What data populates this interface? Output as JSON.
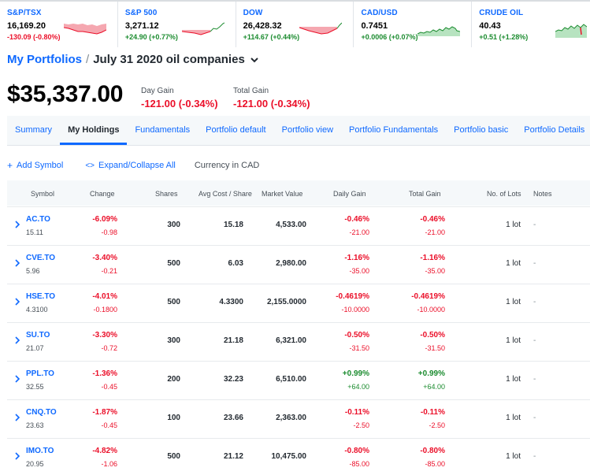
{
  "tickers": [
    {
      "name": "S&P/TSX",
      "price": "16,169.20",
      "change": "-130.09 (-0.80%)",
      "dir": "neg",
      "spark": "neg"
    },
    {
      "name": "S&P 500",
      "price": "3,271.12",
      "change": "+24.90 (+0.77%)",
      "dir": "pos",
      "spark": "mix"
    },
    {
      "name": "DOW",
      "price": "26,428.32",
      "change": "+114.67 (+0.44%)",
      "dir": "pos",
      "spark": "mix2"
    },
    {
      "name": "CAD/USD",
      "price": "0.7451",
      "change": "+0.0006 (+0.07%)",
      "dir": "pos",
      "spark": "pos"
    },
    {
      "name": "CRUDE OIL",
      "price": "40.43",
      "change": "+0.51 (+1.28%)",
      "dir": "pos",
      "spark": "pos2"
    }
  ],
  "breadcrumb": {
    "root": "My Portfolios",
    "separator": "/",
    "current": "July 31 2020 oil companies"
  },
  "summary": {
    "value": "$35,337.00",
    "day_gain_label": "Day Gain",
    "day_gain": "-121.00 (-0.34%)",
    "total_gain_label": "Total Gain",
    "total_gain": "-121.00 (-0.34%)"
  },
  "tabs": [
    "Summary",
    "My Holdings",
    "Fundamentals",
    "Portfolio default",
    "Portfolio view",
    "Portfolio Fundamentals",
    "Portfolio basic",
    "Portfolio Details"
  ],
  "active_tab": "My Holdings",
  "toolbar": {
    "add_symbol": "Add Symbol",
    "expand_collapse": "Expand/Collapse All",
    "currency": "Currency in CAD"
  },
  "table": {
    "headers": [
      "Symbol",
      "Change",
      "Shares",
      "Avg Cost / Share",
      "Market Value",
      "Daily Gain",
      "Total Gain",
      "No. of Lots",
      "Notes"
    ],
    "rows": [
      {
        "symbol": "AC.TO",
        "last": "15.11",
        "chg_pct": "-6.09%",
        "chg_abs": "-0.98",
        "chg_dir": "neg",
        "shares": "300",
        "avg_cost": "15.18",
        "market_value": "4,533.00",
        "daily_pct": "-0.46%",
        "daily_abs": "-21.00",
        "daily_dir": "neg",
        "total_pct": "-0.46%",
        "total_abs": "-21.00",
        "total_dir": "neg",
        "lots": "1 lot",
        "notes": "-"
      },
      {
        "symbol": "CVE.TO",
        "last": "5.96",
        "chg_pct": "-3.40%",
        "chg_abs": "-0.21",
        "chg_dir": "neg",
        "shares": "500",
        "avg_cost": "6.03",
        "market_value": "2,980.00",
        "daily_pct": "-1.16%",
        "daily_abs": "-35.00",
        "daily_dir": "neg",
        "total_pct": "-1.16%",
        "total_abs": "-35.00",
        "total_dir": "neg",
        "lots": "1 lot",
        "notes": "-"
      },
      {
        "symbol": "HSE.TO",
        "last": "4.3100",
        "chg_pct": "-4.01%",
        "chg_abs": "-0.1800",
        "chg_dir": "neg",
        "shares": "500",
        "avg_cost": "4.3300",
        "market_value": "2,155.0000",
        "daily_pct": "-0.4619%",
        "daily_abs": "-10.0000",
        "daily_dir": "neg",
        "total_pct": "-0.4619%",
        "total_abs": "-10.0000",
        "total_dir": "neg",
        "lots": "1 lot",
        "notes": "-"
      },
      {
        "symbol": "SU.TO",
        "last": "21.07",
        "chg_pct": "-3.30%",
        "chg_abs": "-0.72",
        "chg_dir": "neg",
        "shares": "300",
        "avg_cost": "21.18",
        "market_value": "6,321.00",
        "daily_pct": "-0.50%",
        "daily_abs": "-31.50",
        "daily_dir": "neg",
        "total_pct": "-0.50%",
        "total_abs": "-31.50",
        "total_dir": "neg",
        "lots": "1 lot",
        "notes": "-"
      },
      {
        "symbol": "PPL.TO",
        "last": "32.55",
        "chg_pct": "-1.36%",
        "chg_abs": "-0.45",
        "chg_dir": "neg",
        "shares": "200",
        "avg_cost": "32.23",
        "market_value": "6,510.00",
        "daily_pct": "+0.99%",
        "daily_abs": "+64.00",
        "daily_dir": "pos",
        "total_pct": "+0.99%",
        "total_abs": "+64.00",
        "total_dir": "pos",
        "lots": "1 lot",
        "notes": "-"
      },
      {
        "symbol": "CNQ.TO",
        "last": "23.63",
        "chg_pct": "-1.87%",
        "chg_abs": "-0.45",
        "chg_dir": "neg",
        "shares": "100",
        "avg_cost": "23.66",
        "market_value": "2,363.00",
        "daily_pct": "-0.11%",
        "daily_abs": "-2.50",
        "daily_dir": "neg",
        "total_pct": "-0.11%",
        "total_abs": "-2.50",
        "total_dir": "neg",
        "lots": "1 lot",
        "notes": "-"
      },
      {
        "symbol": "IMO.TO",
        "last": "20.95",
        "chg_pct": "-4.82%",
        "chg_abs": "-1.06",
        "chg_dir": "neg",
        "shares": "500",
        "avg_cost": "21.12",
        "market_value": "10,475.00",
        "daily_pct": "-0.80%",
        "daily_abs": "-85.00",
        "daily_dir": "neg",
        "total_pct": "-0.80%",
        "total_abs": "-85.00",
        "total_dir": "neg",
        "lots": "1 lot",
        "notes": "-"
      }
    ]
  },
  "colors": {
    "accent": "#0f69ff",
    "negative": "#eb0f29",
    "positive": "#1a8b2e"
  }
}
